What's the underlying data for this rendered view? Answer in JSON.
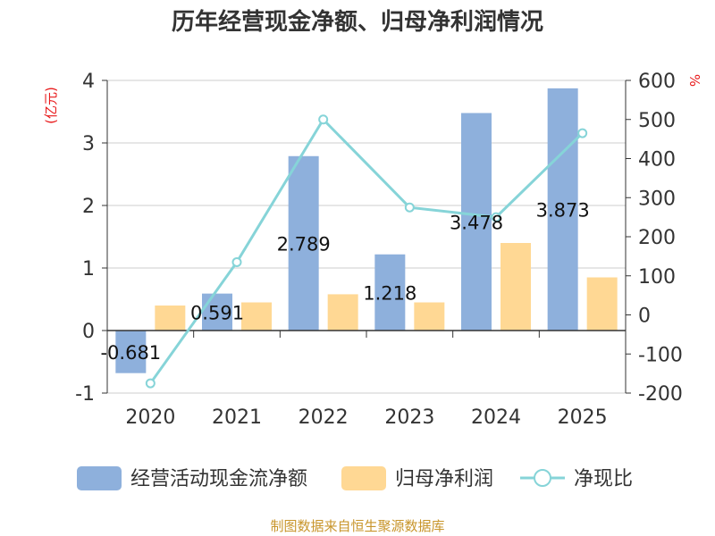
{
  "title": "历年经营现金净额、归母净利润情况",
  "source": "制图数据来自恒生聚源数据库",
  "chart_data": {
    "type": "bar",
    "title": "历年经营现金净额、归母净利润情况",
    "categories": [
      "2020",
      "2021",
      "2022",
      "2023",
      "2024",
      "2025"
    ],
    "y_left": {
      "unit": "(亿元)",
      "ylim": [
        -1,
        4
      ],
      "ticks": [
        "-1",
        "0",
        "1",
        "2",
        "3",
        "4"
      ]
    },
    "y_right": {
      "unit": "%",
      "ylim": [
        -200,
        600
      ],
      "ticks": [
        "-200",
        "-100",
        "0",
        "100",
        "200",
        "300",
        "400",
        "500",
        "600"
      ]
    },
    "series": [
      {
        "name": "经营活动现金流净额",
        "type": "bar",
        "axis": "left",
        "color": "#8eb0dc",
        "values": [
          -0.681,
          0.591,
          2.789,
          1.218,
          3.478,
          3.873
        ],
        "labels": [
          "-0.681",
          "0.591",
          "2.789",
          "1.218",
          "3.478",
          "3.873"
        ]
      },
      {
        "name": "归母净利润",
        "type": "bar",
        "axis": "left",
        "color": "#ffd894",
        "values": [
          0.4,
          0.45,
          0.58,
          0.45,
          1.4,
          0.85
        ]
      },
      {
        "name": "净现比",
        "type": "line",
        "axis": "right",
        "color": "#86d4d8",
        "values": [
          -175,
          135,
          500,
          275,
          250,
          465
        ]
      }
    ],
    "legend_position": "bottom",
    "grid": true
  }
}
